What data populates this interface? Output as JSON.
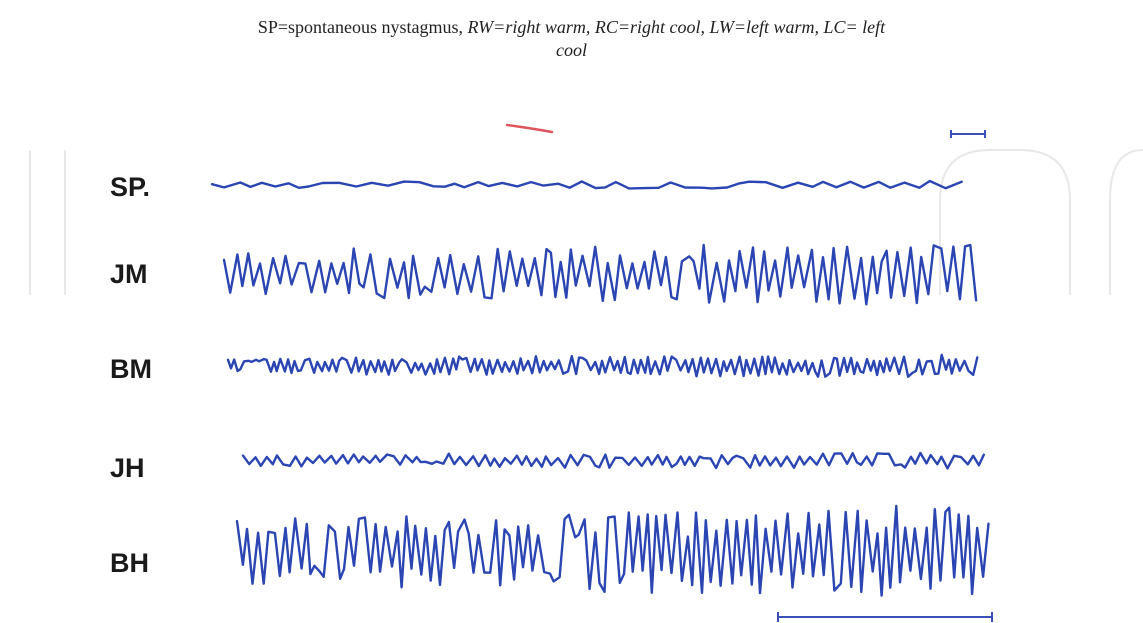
{
  "caption": {
    "line1_plain": "SP=spontaneous nystagmus, ",
    "line1_italic": "RW=right warm, RC=right cool, LW=left warm, LC= left",
    "line2_italic": "cool"
  },
  "traces": [
    {
      "id": "sp",
      "label": "SP.",
      "amplitude": 0.12,
      "density": 0.45
    },
    {
      "id": "jm",
      "label": "JM",
      "amplitude": 0.62,
      "density": 1.0
    },
    {
      "id": "bm",
      "label": "BM",
      "amplitude": 0.28,
      "density": 1.6
    },
    {
      "id": "jh",
      "label": "JH",
      "amplitude": 0.22,
      "density": 1.1
    },
    {
      "id": "bh",
      "label": "BH",
      "amplitude": 0.78,
      "density": 1.2
    }
  ],
  "colors": {
    "trace": "#2b45b3",
    "trace_highlight": "#33a7c9",
    "scale_bar": "#3a4fb8",
    "watermark": "#d6d6d6",
    "red_mark": "#e0545c",
    "label": "#1a1a1a"
  }
}
